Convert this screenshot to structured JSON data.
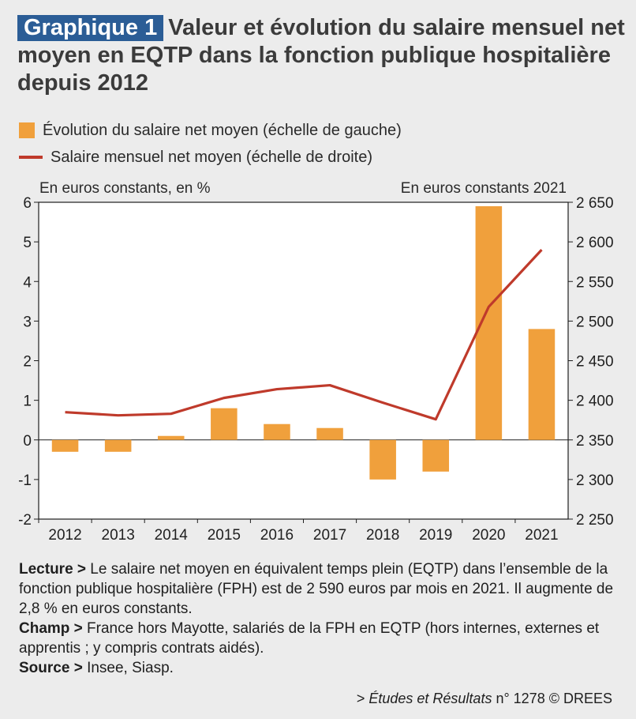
{
  "header": {
    "badge": "Graphique 1",
    "title": "Valeur et évolution du salaire mensuel net moyen en EQTP dans la fonction publique hospitalière depuis 2012"
  },
  "legend": {
    "bar_label": "Évolution du salaire net moyen (échelle de gauche)",
    "line_label": "Salaire mensuel net moyen (échelle de droite)"
  },
  "axes": {
    "left_unit": "En euros constants, en %",
    "right_unit": "En euros constants 2021"
  },
  "chart_data": {
    "type": "bar",
    "categories": [
      "2012",
      "2013",
      "2014",
      "2015",
      "2016",
      "2017",
      "2018",
      "2019",
      "2020",
      "2021"
    ],
    "series": [
      {
        "name": "Évolution du salaire net moyen (échelle de gauche)",
        "type": "bar",
        "axis": "left",
        "color": "#f0a03c",
        "values": [
          -0.3,
          -0.3,
          0.1,
          0.8,
          0.4,
          0.3,
          -1.0,
          -0.8,
          5.9,
          2.8
        ]
      },
      {
        "name": "Salaire mensuel net moyen (échelle de droite)",
        "type": "line",
        "axis": "right",
        "color": "#bf3a2b",
        "values": [
          2385,
          2381,
          2383,
          2403,
          2414,
          2419,
          2397,
          2376,
          2518,
          2590
        ]
      }
    ],
    "ylim_left": [
      -2,
      6
    ],
    "yticks_left": [
      "-2",
      "-1",
      "0",
      "1",
      "2",
      "3",
      "4",
      "5",
      "6"
    ],
    "ylim_right": [
      2250,
      2650
    ],
    "yticks_right": [
      "2 250",
      "2 300",
      "2 350",
      "2 400",
      "2 450",
      "2 500",
      "2 550",
      "2 600",
      "2 650"
    ],
    "grid": false
  },
  "notes": {
    "lecture_label": "Lecture >",
    "lecture_text": " Le salaire net moyen en équivalent temps plein (EQTP) dans l’ensemble de la fonction publique hospitalière (FPH) est de 2 590 euros par mois en 2021. Il augmente de 2,8 % en euros constants.",
    "champ_label": "Champ >",
    "champ_text": " France hors Mayotte, salariés de la FPH en EQTP (hors internes, externes et apprentis ; y compris contrats aidés).",
    "source_label": "Source >",
    "source_text": " Insee, Siasp."
  },
  "footer": {
    "prefix": "> ",
    "publication": "Études et Résultats",
    "suffix": " n° 1278 © DREES"
  }
}
